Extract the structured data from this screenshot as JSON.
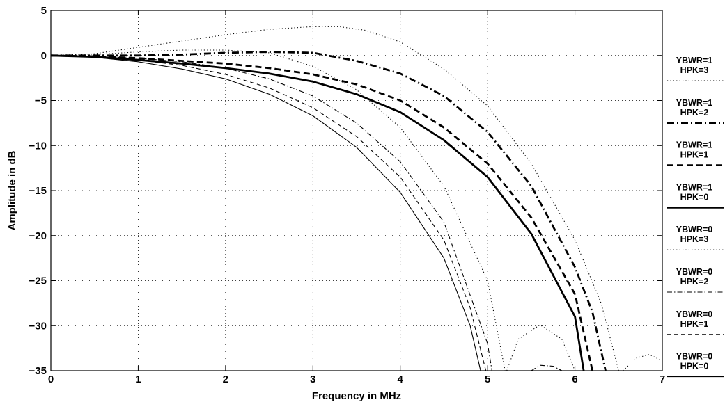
{
  "chart_data": {
    "type": "line",
    "title": "",
    "xlabel": "Frequency in MHz",
    "ylabel": "Amplitude in dB",
    "xlim": [
      0,
      7
    ],
    "ylim": [
      -35,
      5
    ],
    "xticks": [
      "0",
      "1",
      "2",
      "3",
      "4",
      "5",
      "6",
      "7"
    ],
    "yticks": [
      "5",
      "0",
      "−5",
      "−10",
      "−15",
      "−20",
      "−25",
      "−30",
      "−35"
    ],
    "grid": true,
    "legend_position": "right",
    "series": [
      {
        "name": "YBWR=1 HPK=3",
        "style": "dotted",
        "width": "thin",
        "segments": [
          [
            [
              0,
              0
            ],
            [
              0.5,
              0.2
            ],
            [
              1,
              0.9
            ],
            [
              1.5,
              1.6
            ],
            [
              2,
              2.3
            ],
            [
              2.5,
              2.9
            ],
            [
              3,
              3.2
            ],
            [
              3.3,
              3.2
            ],
            [
              3.6,
              2.8
            ],
            [
              4,
              1.5
            ],
            [
              4.5,
              -1.5
            ],
            [
              5,
              -5.6
            ],
            [
              5.5,
              -12
            ],
            [
              6,
              -20.5
            ],
            [
              6.3,
              -27.5
            ],
            [
              6.5,
              -35
            ]
          ],
          [
            [
              6.55,
              -35
            ],
            [
              6.7,
              -33.6
            ],
            [
              6.85,
              -33.2
            ],
            [
              7,
              -33.9
            ]
          ]
        ]
      },
      {
        "name": "YBWR=1 HPK=2",
        "style": "dashdot",
        "width": "thick",
        "segments": [
          [
            [
              0,
              0
            ],
            [
              0.5,
              0
            ],
            [
              1,
              0
            ],
            [
              1.5,
              0.1
            ],
            [
              2,
              0.3
            ],
            [
              2.5,
              0.4
            ],
            [
              3,
              0.3
            ],
            [
              3.5,
              -0.6
            ],
            [
              4,
              -2
            ],
            [
              4.5,
              -4.5
            ],
            [
              5,
              -8.5
            ],
            [
              5.5,
              -14.5
            ],
            [
              6,
              -23.5
            ],
            [
              6.2,
              -28.5
            ],
            [
              6.35,
              -35
            ]
          ]
        ]
      },
      {
        "name": "YBWR=1 HPK=1",
        "style": "dashed",
        "width": "thick",
        "segments": [
          [
            [
              0,
              0
            ],
            [
              0.5,
              -0.1
            ],
            [
              1,
              -0.3
            ],
            [
              1.5,
              -0.6
            ],
            [
              2,
              -0.9
            ],
            [
              2.5,
              -1.4
            ],
            [
              3,
              -2.1
            ],
            [
              3.5,
              -3.2
            ],
            [
              4,
              -5
            ],
            [
              4.5,
              -8
            ],
            [
              5,
              -12
            ],
            [
              5.5,
              -18
            ],
            [
              6,
              -26.5
            ],
            [
              6.2,
              -35
            ]
          ]
        ]
      },
      {
        "name": "YBWR=1 HPK=0",
        "style": "solid",
        "width": "thick",
        "segments": [
          [
            [
              0,
              0
            ],
            [
              0.5,
              -0.15
            ],
            [
              1,
              -0.5
            ],
            [
              1.5,
              -0.9
            ],
            [
              2,
              -1.4
            ],
            [
              2.5,
              -2
            ],
            [
              3,
              -2.9
            ],
            [
              3.5,
              -4.3
            ],
            [
              4,
              -6.3
            ],
            [
              4.5,
              -9.4
            ],
            [
              5,
              -13.5
            ],
            [
              5.5,
              -19.8
            ],
            [
              6,
              -29
            ],
            [
              6.1,
              -35
            ]
          ]
        ]
      },
      {
        "name": "YBWR=0 HPK=3",
        "style": "dotted",
        "width": "thin",
        "segments": [
          [
            [
              0,
              0
            ],
            [
              0.5,
              0.1
            ],
            [
              1,
              0.4
            ],
            [
              1.5,
              0.6
            ],
            [
              2,
              0.6
            ],
            [
              2.5,
              0.3
            ],
            [
              3,
              -1.2
            ],
            [
              3.5,
              -3.8
            ],
            [
              4,
              -8
            ],
            [
              4.5,
              -14.5
            ],
            [
              5,
              -25
            ],
            [
              5.2,
              -35
            ]
          ],
          [
            [
              5.22,
              -35
            ],
            [
              5.35,
              -31.5
            ],
            [
              5.6,
              -29.9
            ],
            [
              5.85,
              -31.5
            ],
            [
              6,
              -35
            ]
          ]
        ]
      },
      {
        "name": "YBWR=0 HPK=2",
        "style": "dashdot",
        "width": "thin",
        "segments": [
          [
            [
              0,
              0
            ],
            [
              0.5,
              -0.1
            ],
            [
              1,
              -0.3
            ],
            [
              1.5,
              -0.7
            ],
            [
              2,
              -1.4
            ],
            [
              2.5,
              -2.6
            ],
            [
              3,
              -4.5
            ],
            [
              3.5,
              -7.5
            ],
            [
              4,
              -11.8
            ],
            [
              4.5,
              -18.5
            ],
            [
              5,
              -32
            ],
            [
              5.05,
              -35
            ]
          ],
          [
            [
              5.5,
              -35
            ],
            [
              5.6,
              -34.4
            ],
            [
              5.75,
              -34.5
            ],
            [
              5.85,
              -35
            ]
          ]
        ]
      },
      {
        "name": "YBWR=0 HPK=1",
        "style": "dashed",
        "width": "thin",
        "segments": [
          [
            [
              0,
              0
            ],
            [
              0.5,
              -0.1
            ],
            [
              1,
              -0.5
            ],
            [
              1.5,
              -1.1
            ],
            [
              2,
              -2.1
            ],
            [
              2.5,
              -3.6
            ],
            [
              3,
              -5.8
            ],
            [
              3.5,
              -9
            ],
            [
              4,
              -13.5
            ],
            [
              4.5,
              -20.5
            ],
            [
              4.8,
              -28
            ],
            [
              4.98,
              -35
            ]
          ]
        ]
      },
      {
        "name": "YBWR=0 HPK=0",
        "style": "solid",
        "width": "thin",
        "segments": [
          [
            [
              0,
              0
            ],
            [
              0.5,
              -0.2
            ],
            [
              1,
              -0.7
            ],
            [
              1.5,
              -1.5
            ],
            [
              2,
              -2.6
            ],
            [
              2.5,
              -4.3
            ],
            [
              3,
              -6.7
            ],
            [
              3.5,
              -10.2
            ],
            [
              4,
              -15.2
            ],
            [
              4.5,
              -22.5
            ],
            [
              4.8,
              -30
            ],
            [
              4.92,
              -35
            ]
          ]
        ]
      }
    ]
  }
}
